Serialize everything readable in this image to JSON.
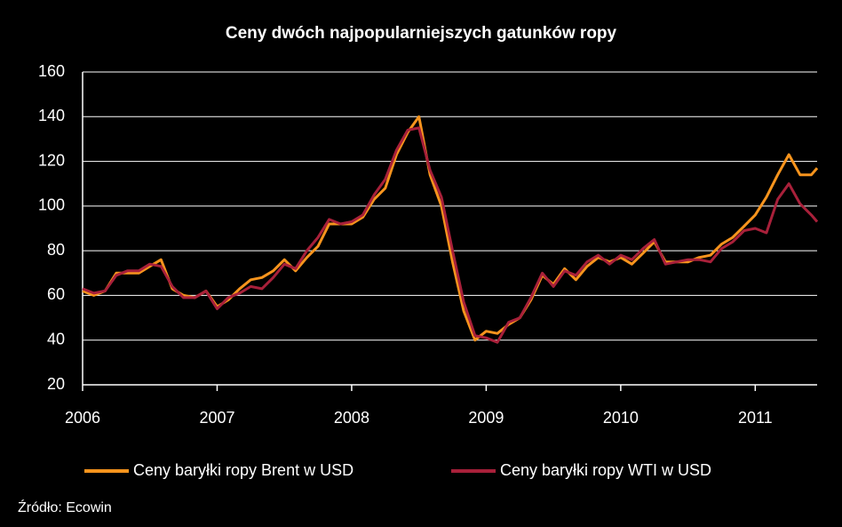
{
  "chart_data": {
    "type": "line",
    "title": "Ceny dwóch najpopularniejszych gatunków ropy",
    "source": "Źródło: Ecowin",
    "x": [
      2006,
      2006.083,
      2006.167,
      2006.25,
      2006.333,
      2006.417,
      2006.5,
      2006.583,
      2006.667,
      2006.75,
      2006.833,
      2006.917,
      2007,
      2007.083,
      2007.167,
      2007.25,
      2007.333,
      2007.417,
      2007.5,
      2007.583,
      2007.667,
      2007.75,
      2007.833,
      2007.917,
      2008,
      2008.083,
      2008.167,
      2008.25,
      2008.333,
      2008.417,
      2008.5,
      2008.583,
      2008.667,
      2008.75,
      2008.833,
      2008.917,
      2009,
      2009.083,
      2009.167,
      2009.25,
      2009.333,
      2009.417,
      2009.5,
      2009.583,
      2009.667,
      2009.75,
      2009.833,
      2009.917,
      2010,
      2010.083,
      2010.167,
      2010.25,
      2010.333,
      2010.417,
      2010.5,
      2010.583,
      2010.667,
      2010.75,
      2010.833,
      2010.917,
      2011,
      2011.083,
      2011.167,
      2011.25,
      2011.333,
      2011.417,
      2011.46
    ],
    "series": [
      {
        "name": "Ceny baryłki ropy Brent w USD",
        "color": "#f7941d",
        "values": [
          62,
          60,
          62,
          70,
          70,
          70,
          73,
          76,
          63,
          60,
          59,
          62,
          55,
          58,
          63,
          67,
          68,
          71,
          76,
          71,
          77,
          82,
          92,
          92,
          92,
          95,
          103,
          108,
          123,
          133,
          140,
          114,
          100,
          75,
          53,
          40,
          44,
          43,
          47,
          50,
          58,
          69,
          65,
          72,
          67,
          73,
          77,
          75,
          77,
          74,
          79,
          84,
          75,
          75,
          75,
          77,
          78,
          83,
          86,
          91,
          96,
          104,
          114,
          123,
          114,
          114,
          117
        ]
      },
      {
        "name": "Ceny baryłki ropy WTI w USD",
        "color": "#a8203a",
        "values": [
          63,
          61,
          62,
          69,
          71,
          71,
          74,
          73,
          64,
          59,
          59,
          62,
          54,
          59,
          61,
          64,
          63,
          68,
          74,
          72,
          80,
          86,
          94,
          92,
          93,
          96,
          105,
          112,
          125,
          134,
          135,
          116,
          104,
          80,
          57,
          42,
          41,
          39,
          48,
          50,
          59,
          70,
          64,
          71,
          69,
          75,
          78,
          74,
          78,
          76,
          81,
          85,
          74,
          75,
          76,
          76,
          75,
          81,
          84,
          89,
          90,
          88,
          103,
          110,
          101,
          96,
          93
        ]
      }
    ],
    "xlim": [
      2006,
      2011.46
    ],
    "xticks": [
      2006,
      2007,
      2008,
      2009,
      2010,
      2011
    ],
    "ylim": [
      20,
      160
    ],
    "yticks": [
      20,
      40,
      60,
      80,
      100,
      120,
      140,
      160
    ],
    "grid": true,
    "legend": "bottom"
  }
}
